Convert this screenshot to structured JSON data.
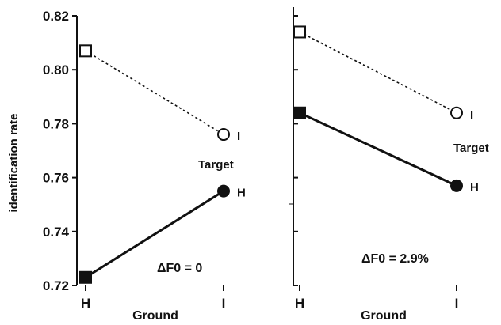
{
  "chart_data": [
    {
      "type": "line",
      "categories": [
        "H",
        "I"
      ],
      "xlabel": "Ground",
      "ylabel": "identification rate",
      "ylim": [
        0.72,
        0.82
      ],
      "yticks": [
        "0.72",
        "0.74",
        "0.76",
        "0.78",
        "0.80",
        "0.82"
      ],
      "series": [
        {
          "name": "I",
          "values": [
            0.807,
            0.776
          ],
          "marker": "open",
          "linestyle": "dotted"
        },
        {
          "name": "H",
          "values": [
            0.723,
            0.755
          ],
          "marker": "filled",
          "linestyle": "solid"
        }
      ],
      "annotations": {
        "target": "Target",
        "condition": "ΔF0 = 0"
      }
    },
    {
      "type": "line",
      "categories": [
        "H",
        "I"
      ],
      "xlabel": "Ground",
      "ylim": [
        0.72,
        0.82
      ],
      "series": [
        {
          "name": "I",
          "values": [
            0.814,
            0.784
          ],
          "marker": "open",
          "linestyle": "dotted"
        },
        {
          "name": "H",
          "values": [
            0.784,
            0.757
          ],
          "marker": "filled",
          "linestyle": "solid"
        }
      ],
      "annotations": {
        "target": "Target",
        "condition": "ΔF0 = 2.9%"
      }
    }
  ],
  "colors": {
    "ink": "#111111",
    "background": "#ffffff"
  }
}
